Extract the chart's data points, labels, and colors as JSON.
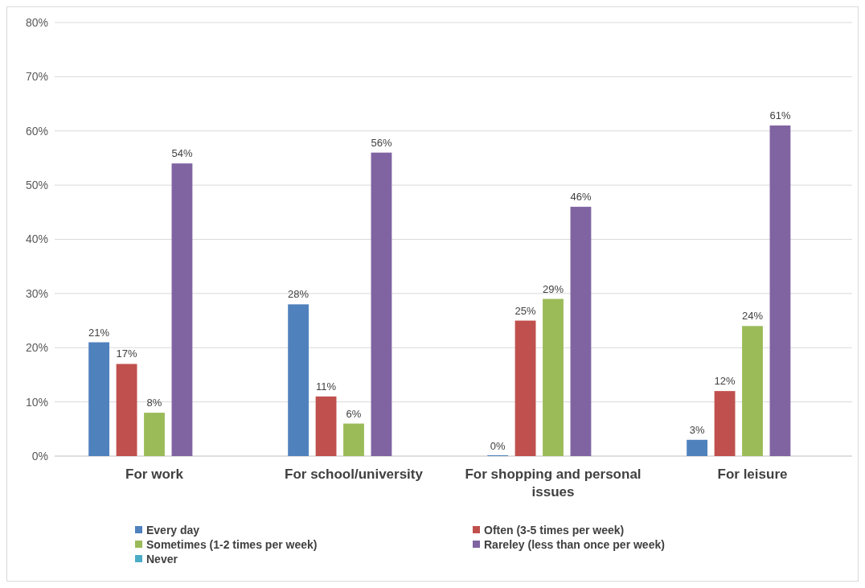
{
  "chart_data": {
    "type": "bar",
    "categories": [
      "For work",
      "For school/university",
      "For shopping and personal issues",
      "For leisure"
    ],
    "series": [
      {
        "name": "Every day",
        "color": "#4f81bd",
        "values": [
          21,
          28,
          0,
          3
        ],
        "value_labels": [
          "21%",
          "28%",
          "0%",
          "3%"
        ]
      },
      {
        "name": "Often (3-5 times per week)",
        "color": "#c0504d",
        "values": [
          17,
          11,
          25,
          12
        ],
        "value_labels": [
          "17%",
          "11%",
          "25%",
          "12%"
        ]
      },
      {
        "name": "Sometimes (1-2 times per week)",
        "color": "#9bbb59",
        "values": [
          8,
          6,
          29,
          24
        ],
        "value_labels": [
          "8%",
          "6%",
          "29%",
          "24%"
        ]
      },
      {
        "name": "Rareley (less than once per week)",
        "color": "#8064a2",
        "values": [
          54,
          56,
          46,
          61
        ],
        "value_labels": [
          "54%",
          "56%",
          "46%",
          "61%"
        ]
      },
      {
        "name": "Never",
        "color": "#4bacc6",
        "values": [
          null,
          null,
          null,
          null
        ]
      }
    ],
    "ylim": [
      0,
      80
    ],
    "yticks": [
      {
        "value": 0,
        "label": "0%"
      },
      {
        "value": 10,
        "label": "10%"
      },
      {
        "value": 20,
        "label": "20%"
      },
      {
        "value": 30,
        "label": "30%"
      },
      {
        "value": 40,
        "label": "40%"
      },
      {
        "value": 50,
        "label": "50%"
      },
      {
        "value": 60,
        "label": "60%"
      },
      {
        "value": 70,
        "label": "70%"
      },
      {
        "value": 80,
        "label": "80%"
      }
    ],
    "grid": "y",
    "legend": "bottom"
  }
}
